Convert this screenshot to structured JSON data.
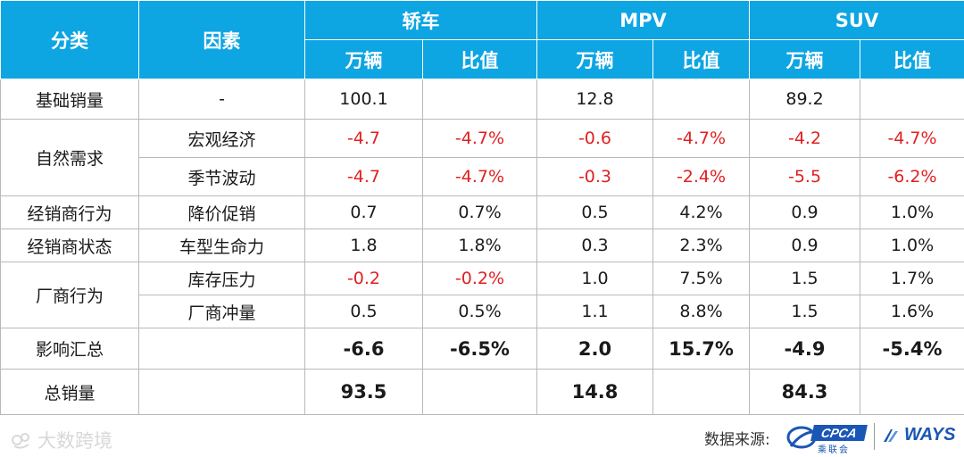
{
  "table": {
    "header": {
      "category": "分类",
      "factor": "因素",
      "groups": [
        "轿车",
        "MPV",
        "SUV"
      ],
      "sub_units": "万辆",
      "sub_ratio": "比值"
    },
    "rows": [
      {
        "category": "基础销量",
        "factor": "-",
        "values": [
          "100.1",
          "",
          "12.8",
          "",
          "89.2",
          ""
        ]
      },
      {
        "category": "自然需求",
        "factor": "宏观经济",
        "values": [
          "-4.7",
          "-4.7%",
          "-0.6",
          "-4.7%",
          "-4.2",
          "-4.7%"
        ]
      },
      {
        "category": "",
        "factor": "季节波动",
        "values": [
          "-4.7",
          "-4.7%",
          "-0.3",
          "-2.4%",
          "-5.5",
          "-6.2%"
        ]
      },
      {
        "category": "经销商行为",
        "factor": "降价促销",
        "values": [
          "0.7",
          "0.7%",
          "0.5",
          "4.2%",
          "0.9",
          "1.0%"
        ]
      },
      {
        "category": "经销商状态",
        "factor": "车型生命力",
        "values": [
          "1.8",
          "1.8%",
          "0.3",
          "2.3%",
          "0.9",
          "1.0%"
        ]
      },
      {
        "category": "厂商行为",
        "factor": "库存压力",
        "values": [
          "-0.2",
          "-0.2%",
          "1.0",
          "7.5%",
          "1.5",
          "1.7%"
        ]
      },
      {
        "category": "",
        "factor": "厂商冲量",
        "values": [
          "0.5",
          "0.5%",
          "1.1",
          "8.8%",
          "1.5",
          "1.6%"
        ]
      },
      {
        "category": "影响汇总",
        "factor": "",
        "values": [
          "-6.6",
          "-6.5%",
          "2.0",
          "15.7%",
          "-4.9",
          "-5.4%"
        ]
      },
      {
        "category": "总销量",
        "factor": "",
        "values": [
          "93.5",
          "",
          "14.8",
          "",
          "84.3",
          ""
        ]
      }
    ]
  },
  "chart_data": {
    "type": "table",
    "columns": [
      "分类",
      "因素",
      "轿车 万辆",
      "轿车 比值",
      "MPV 万辆",
      "MPV 比值",
      "SUV 万辆",
      "SUV 比值"
    ],
    "rows": [
      [
        "基础销量",
        "-",
        100.1,
        null,
        12.8,
        null,
        89.2,
        null
      ],
      [
        "自然需求",
        "宏观经济",
        -4.7,
        "-4.7%",
        -0.6,
        "-4.7%",
        -4.2,
        "-4.7%"
      ],
      [
        "自然需求",
        "季节波动",
        -4.7,
        "-4.7%",
        -0.3,
        "-2.4%",
        -5.5,
        "-6.2%"
      ],
      [
        "经销商行为",
        "降价促销",
        0.7,
        "0.7%",
        0.5,
        "4.2%",
        0.9,
        "1.0%"
      ],
      [
        "经销商状态",
        "车型生命力",
        1.8,
        "1.8%",
        0.3,
        "2.3%",
        0.9,
        "1.0%"
      ],
      [
        "厂商行为",
        "库存压力",
        -0.2,
        "-0.2%",
        1.0,
        "7.5%",
        1.5,
        "1.7%"
      ],
      [
        "厂商行为",
        "厂商冲量",
        0.5,
        "0.5%",
        1.1,
        "8.8%",
        1.5,
        "1.6%"
      ],
      [
        "影响汇总",
        "",
        -6.6,
        "-6.5%",
        2.0,
        "15.7%",
        -4.9,
        "-5.4%"
      ],
      [
        "总销量",
        "",
        93.5,
        null,
        14.8,
        null,
        84.3,
        null
      ]
    ],
    "negative_color": "#e02020",
    "header_color": "#0ea5e3"
  },
  "footer": {
    "watermark": "大数跨境",
    "source_label": "数据来源:",
    "cpca_logo_text": "CPCA",
    "cpca_sub": "乘联会",
    "ways_logo_text": "WAYS"
  }
}
